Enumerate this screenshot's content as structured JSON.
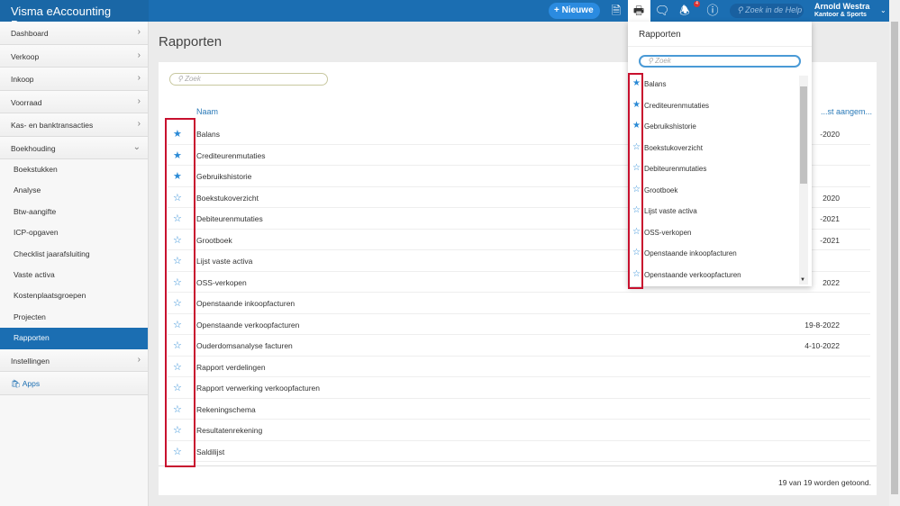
{
  "app": {
    "title": "Visma eAccounting Pro",
    "new_label": "Nieuwe",
    "help_placeholder": "Zoek in de Help",
    "notification_count": "4",
    "user_name": "Arnold Westra",
    "company": "Kantoor & Sports",
    "accent": "#1b6eb2"
  },
  "sidebar": {
    "items": [
      {
        "label": "Dashboard"
      },
      {
        "label": "Verkoop"
      },
      {
        "label": "Inkoop"
      },
      {
        "label": "Voorraad"
      },
      {
        "label": "Kas- en banktransacties"
      },
      {
        "label": "Boekhouding"
      }
    ],
    "sub": [
      "Boekstukken",
      "Analyse",
      "Btw-aangifte",
      "ICP-opgaven",
      "Checklist jaarafsluiting",
      "Vaste activa",
      "Kostenplaatsgroepen",
      "Projecten",
      "Rapporten"
    ],
    "active": "Rapporten",
    "settings": "Instellingen",
    "apps": "Apps"
  },
  "main": {
    "title": "Rapporten",
    "search_placeholder": "Zoek",
    "col_name": "Naam",
    "col_date": "...st aangem...",
    "footer": "19 van 19 worden getoond.",
    "rows": [
      {
        "name": "Balans",
        "fav": true,
        "date": "-2020"
      },
      {
        "name": "Crediteurenmutaties",
        "fav": true,
        "date": ""
      },
      {
        "name": "Gebruikshistorie",
        "fav": true,
        "date": ""
      },
      {
        "name": "Boekstukoverzicht",
        "fav": false,
        "date": "2020"
      },
      {
        "name": "Debiteurenmutaties",
        "fav": false,
        "date": "-2021"
      },
      {
        "name": "Grootboek",
        "fav": false,
        "date": "-2021"
      },
      {
        "name": "Lijst vaste activa",
        "fav": false,
        "date": ""
      },
      {
        "name": "OSS-verkopen",
        "fav": false,
        "date": "2022"
      },
      {
        "name": "Openstaande inkoopfacturen",
        "fav": false,
        "date": ""
      },
      {
        "name": "Openstaande verkoopfacturen",
        "fav": false,
        "date": "19-8-2022"
      },
      {
        "name": "Ouderdomsanalyse facturen",
        "fav": false,
        "date": "4-10-2022"
      },
      {
        "name": "Rapport verdelingen",
        "fav": false,
        "date": ""
      },
      {
        "name": "Rapport verwerking verkoopfacturen",
        "fav": false,
        "date": ""
      },
      {
        "name": "Rekeningschema",
        "fav": false,
        "date": ""
      },
      {
        "name": "Resultatenrekening",
        "fav": false,
        "date": ""
      },
      {
        "name": "Saldilijst",
        "fav": false,
        "date": ""
      }
    ]
  },
  "dropdown": {
    "title": "Rapporten",
    "search_placeholder": "Zoek",
    "items": [
      {
        "name": "Balans",
        "fav": true
      },
      {
        "name": "Crediteurenmutaties",
        "fav": true
      },
      {
        "name": "Gebruikshistorie",
        "fav": true
      },
      {
        "name": "Boekstukoverzicht",
        "fav": false
      },
      {
        "name": "Debiteurenmutaties",
        "fav": false
      },
      {
        "name": "Grootboek",
        "fav": false
      },
      {
        "name": "Lijst vaste activa",
        "fav": false
      },
      {
        "name": "OSS-verkopen",
        "fav": false
      },
      {
        "name": "Openstaande inkoopfacturen",
        "fav": false
      },
      {
        "name": "Openstaande verkoopfacturen",
        "fav": false
      }
    ]
  }
}
